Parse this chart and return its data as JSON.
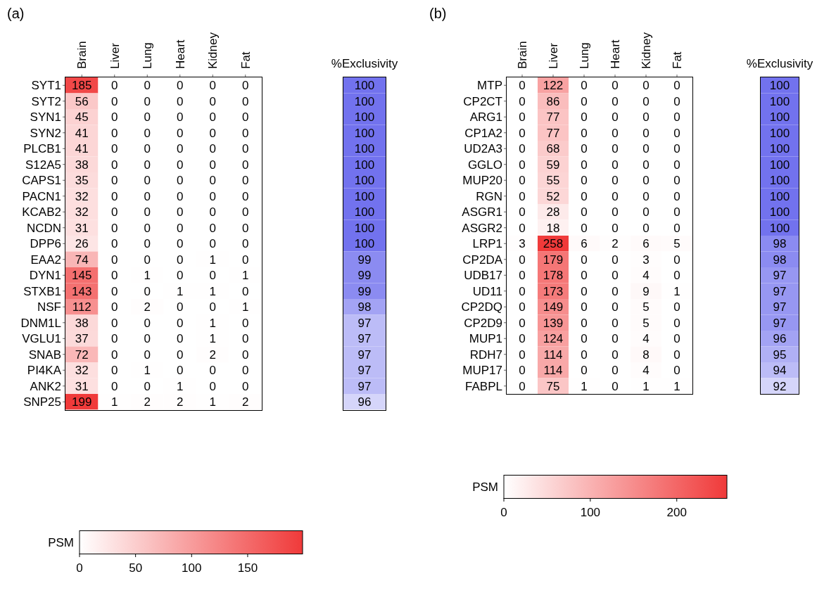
{
  "chart_data": [
    {
      "type": "heatmap",
      "title": "(a)",
      "categories": [
        "Brain",
        "Liver",
        "Lung",
        "Heart",
        "Kidney",
        "Fat"
      ],
      "y_categories": [
        "SYT1",
        "SYT2",
        "SYN1",
        "SYN2",
        "PLCB1",
        "S12A5",
        "CAPS1",
        "PACN1",
        "KCAB2",
        "NCDN",
        "DPP6",
        "EAA2",
        "DYN1",
        "STXB1",
        "NSF",
        "DNM1L",
        "VGLU1",
        "SNAB",
        "PI4KA",
        "ANK2",
        "SNP25"
      ],
      "cells": [
        [
          185,
          0,
          0,
          0,
          0,
          0
        ],
        [
          56,
          0,
          0,
          0,
          0,
          0
        ],
        [
          45,
          0,
          0,
          0,
          0,
          0
        ],
        [
          41,
          0,
          0,
          0,
          0,
          0
        ],
        [
          41,
          0,
          0,
          0,
          0,
          0
        ],
        [
          38,
          0,
          0,
          0,
          0,
          0
        ],
        [
          35,
          0,
          0,
          0,
          0,
          0
        ],
        [
          32,
          0,
          0,
          0,
          0,
          0
        ],
        [
          32,
          0,
          0,
          0,
          0,
          0
        ],
        [
          31,
          0,
          0,
          0,
          0,
          0
        ],
        [
          26,
          0,
          0,
          0,
          0,
          0
        ],
        [
          74,
          0,
          0,
          0,
          1,
          0
        ],
        [
          145,
          0,
          1,
          0,
          0,
          1
        ],
        [
          143,
          0,
          0,
          1,
          1,
          0
        ],
        [
          112,
          0,
          2,
          0,
          0,
          1
        ],
        [
          38,
          0,
          0,
          0,
          1,
          0
        ],
        [
          37,
          0,
          0,
          0,
          1,
          0
        ],
        [
          72,
          0,
          0,
          0,
          2,
          0
        ],
        [
          32,
          0,
          1,
          0,
          0,
          0
        ],
        [
          31,
          0,
          0,
          1,
          0,
          0
        ],
        [
          199,
          1,
          2,
          2,
          1,
          2
        ]
      ],
      "color": "#f03a3a",
      "clim": [
        0,
        199
      ],
      "cticks": [
        0,
        50,
        100,
        150
      ],
      "clabel": "PSM",
      "data_labels": true
    },
    {
      "type": "heatmap",
      "categories": [
        "%Exclusivity"
      ],
      "y_categories": [
        null,
        null,
        null,
        null,
        null,
        null,
        null,
        null,
        null,
        null,
        null,
        null,
        null,
        null,
        null,
        null,
        null,
        null,
        null,
        null,
        null
      ],
      "cells": [
        [
          100
        ],
        [
          100
        ],
        [
          100
        ],
        [
          100
        ],
        [
          100
        ],
        [
          100
        ],
        [
          100
        ],
        [
          100
        ],
        [
          100
        ],
        [
          100
        ],
        [
          100
        ],
        [
          99
        ],
        [
          99
        ],
        [
          99
        ],
        [
          98
        ],
        [
          97
        ],
        [
          97
        ],
        [
          97
        ],
        [
          97
        ],
        [
          97
        ],
        [
          96
        ]
      ],
      "color": "#7272ee",
      "data_labels": true
    },
    {
      "type": "heatmap",
      "title": "(b)",
      "categories": [
        "Brain",
        "Liver",
        "Lung",
        "Heart",
        "Kidney",
        "Fat"
      ],
      "y_categories": [
        "MTP",
        "CP2CT",
        "ARG1",
        "CP1A2",
        "UD2A3",
        "GGLO",
        "MUP20",
        "RGN",
        "ASGR1",
        "ASGR2",
        "LRP1",
        "CP2DA",
        "UDB17",
        "UD11",
        "CP2DQ",
        "CP2D9",
        "MUP1",
        "RDH7",
        "MUP17",
        "FABPL"
      ],
      "cells": [
        [
          0,
          122,
          0,
          0,
          0,
          0
        ],
        [
          0,
          86,
          0,
          0,
          0,
          0
        ],
        [
          0,
          77,
          0,
          0,
          0,
          0
        ],
        [
          0,
          77,
          0,
          0,
          0,
          0
        ],
        [
          0,
          68,
          0,
          0,
          0,
          0
        ],
        [
          0,
          59,
          0,
          0,
          0,
          0
        ],
        [
          0,
          55,
          0,
          0,
          0,
          0
        ],
        [
          0,
          52,
          0,
          0,
          0,
          0
        ],
        [
          0,
          28,
          0,
          0,
          0,
          0
        ],
        [
          0,
          18,
          0,
          0,
          0,
          0
        ],
        [
          3,
          258,
          6,
          2,
          6,
          5
        ],
        [
          0,
          179,
          0,
          0,
          3,
          0
        ],
        [
          0,
          178,
          0,
          0,
          4,
          0
        ],
        [
          0,
          173,
          0,
          0,
          9,
          1
        ],
        [
          0,
          149,
          0,
          0,
          5,
          0
        ],
        [
          0,
          139,
          0,
          0,
          5,
          0
        ],
        [
          0,
          124,
          0,
          0,
          4,
          0
        ],
        [
          0,
          114,
          0,
          0,
          8,
          0
        ],
        [
          0,
          114,
          0,
          0,
          4,
          0
        ],
        [
          0,
          75,
          1,
          0,
          1,
          1
        ]
      ],
      "color": "#f03a3a",
      "clim": [
        0,
        258
      ],
      "cticks": [
        0,
        100,
        200
      ],
      "clabel": "PSM",
      "data_labels": true
    },
    {
      "type": "heatmap",
      "categories": [
        "%Exclusivity"
      ],
      "y_categories": [
        null,
        null,
        null,
        null,
        null,
        null,
        null,
        null,
        null,
        null,
        null,
        null,
        null,
        null,
        null,
        null,
        null,
        null,
        null,
        null
      ],
      "cells": [
        [
          100
        ],
        [
          100
        ],
        [
          100
        ],
        [
          100
        ],
        [
          100
        ],
        [
          100
        ],
        [
          100
        ],
        [
          100
        ],
        [
          100
        ],
        [
          100
        ],
        [
          98
        ],
        [
          98
        ],
        [
          97
        ],
        [
          97
        ],
        [
          97
        ],
        [
          97
        ],
        [
          96
        ],
        [
          95
        ],
        [
          94
        ],
        [
          92
        ]
      ],
      "color": "#7272ee",
      "data_labels": true
    }
  ]
}
